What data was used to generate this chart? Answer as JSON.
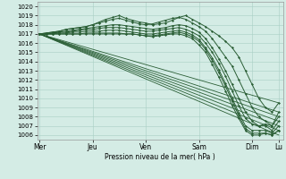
{
  "bg_color": "#d4ece5",
  "grid_color": "#a8cfc4",
  "line_color": "#2a5e35",
  "xlabel_text": "Pression niveau de la mer( hPa )",
  "ylim": [
    1005.5,
    1020.5
  ],
  "yticks": [
    1006,
    1007,
    1008,
    1009,
    1010,
    1011,
    1012,
    1013,
    1014,
    1015,
    1016,
    1017,
    1018,
    1019,
    1020
  ],
  "xtick_labels": [
    "Mer",
    "Jeu",
    "Ven",
    "Sam",
    "Dim",
    "Lu"
  ],
  "xtick_positions": [
    0,
    48,
    96,
    144,
    192,
    216
  ],
  "xlim": [
    -2,
    220
  ],
  "straight_lines": [
    [
      0,
      1017.0,
      216,
      1009.5
    ],
    [
      0,
      1017.0,
      216,
      1008.5
    ],
    [
      0,
      1017.0,
      216,
      1008.0
    ],
    [
      0,
      1017.0,
      216,
      1007.5
    ],
    [
      0,
      1017.0,
      216,
      1007.0
    ],
    [
      0,
      1017.0,
      216,
      1006.5
    ],
    [
      0,
      1017.0,
      216,
      1006.0
    ]
  ],
  "series": [
    {
      "x": [
        0,
        6,
        12,
        18,
        24,
        30,
        36,
        42,
        48,
        54,
        60,
        66,
        72,
        78,
        84,
        90,
        96,
        102,
        108,
        114,
        120,
        126,
        132,
        138,
        144,
        150,
        156,
        162,
        168,
        174,
        180,
        186,
        192,
        198,
        204,
        210,
        216
      ],
      "y": [
        1017.0,
        1017.1,
        1017.2,
        1017.3,
        1017.5,
        1017.6,
        1017.7,
        1017.8,
        1018.0,
        1018.3,
        1018.6,
        1018.8,
        1019.0,
        1018.7,
        1018.5,
        1018.3,
        1018.2,
        1018.0,
        1018.1,
        1018.2,
        1018.5,
        1018.8,
        1019.0,
        1018.6,
        1018.2,
        1017.8,
        1017.3,
        1016.8,
        1016.2,
        1015.5,
        1014.5,
        1013.0,
        1011.5,
        1010.0,
        1009.0,
        1008.5,
        1009.5
      ]
    },
    {
      "x": [
        0,
        6,
        12,
        18,
        24,
        30,
        36,
        42,
        48,
        54,
        60,
        66,
        72,
        78,
        84,
        90,
        96,
        102,
        108,
        114,
        120,
        126,
        132,
        138,
        144,
        150,
        156,
        162,
        168,
        174,
        180,
        186,
        192,
        198,
        204,
        210,
        216
      ],
      "y": [
        1017.0,
        1017.1,
        1017.2,
        1017.3,
        1017.5,
        1017.6,
        1017.7,
        1017.8,
        1018.0,
        1018.2,
        1018.4,
        1018.6,
        1018.7,
        1018.5,
        1018.3,
        1018.1,
        1018.0,
        1018.1,
        1018.3,
        1018.5,
        1018.7,
        1018.8,
        1018.6,
        1018.2,
        1017.8,
        1017.3,
        1016.5,
        1015.5,
        1014.5,
        1013.5,
        1012.0,
        1010.5,
        1009.0,
        1008.0,
        1007.5,
        1007.0,
        1008.5
      ]
    },
    {
      "x": [
        0,
        6,
        12,
        18,
        24,
        30,
        36,
        42,
        48,
        54,
        60,
        66,
        72,
        78,
        84,
        90,
        96,
        102,
        108,
        114,
        120,
        126,
        132,
        138,
        144,
        150,
        156,
        162,
        168,
        174,
        180,
        186,
        192,
        198,
        204,
        210,
        216
      ],
      "y": [
        1017.0,
        1017.0,
        1017.1,
        1017.2,
        1017.3,
        1017.4,
        1017.5,
        1017.6,
        1017.7,
        1017.8,
        1017.9,
        1018.0,
        1018.0,
        1017.9,
        1017.8,
        1017.7,
        1017.6,
        1017.5,
        1017.6,
        1017.7,
        1017.9,
        1018.0,
        1017.9,
        1017.6,
        1017.2,
        1016.5,
        1015.5,
        1014.3,
        1013.0,
        1011.5,
        1010.0,
        1008.5,
        1007.5,
        1007.0,
        1007.2,
        1007.0,
        1008.0
      ]
    },
    {
      "x": [
        0,
        6,
        12,
        18,
        24,
        30,
        36,
        42,
        48,
        54,
        60,
        66,
        72,
        78,
        84,
        90,
        96,
        102,
        108,
        114,
        120,
        126,
        132,
        138,
        144,
        150,
        156,
        162,
        168,
        174,
        180,
        186,
        192,
        198,
        204,
        210,
        216
      ],
      "y": [
        1017.0,
        1017.0,
        1017.1,
        1017.2,
        1017.2,
        1017.3,
        1017.4,
        1017.5,
        1017.5,
        1017.6,
        1017.7,
        1017.7,
        1017.7,
        1017.6,
        1017.5,
        1017.4,
        1017.3,
        1017.3,
        1017.4,
        1017.5,
        1017.6,
        1017.7,
        1017.5,
        1017.2,
        1016.8,
        1016.0,
        1015.0,
        1013.8,
        1012.4,
        1010.8,
        1009.2,
        1007.8,
        1007.2,
        1007.0,
        1007.0,
        1006.5,
        1007.5
      ]
    },
    {
      "x": [
        0,
        6,
        12,
        18,
        24,
        30,
        36,
        42,
        48,
        54,
        60,
        66,
        72,
        78,
        84,
        90,
        96,
        102,
        108,
        114,
        120,
        126,
        132,
        138,
        144,
        150,
        156,
        162,
        168,
        174,
        180,
        186,
        192,
        198,
        204,
        210,
        216
      ],
      "y": [
        1017.0,
        1017.0,
        1017.0,
        1017.1,
        1017.1,
        1017.2,
        1017.2,
        1017.3,
        1017.3,
        1017.3,
        1017.4,
        1017.4,
        1017.4,
        1017.3,
        1017.2,
        1017.1,
        1017.0,
        1017.0,
        1017.1,
        1017.2,
        1017.3,
        1017.4,
        1017.2,
        1016.9,
        1016.4,
        1015.5,
        1014.4,
        1013.1,
        1011.6,
        1010.0,
        1008.4,
        1007.0,
        1006.5,
        1006.5,
        1006.5,
        1006.2,
        1007.0
      ]
    },
    {
      "x": [
        0,
        6,
        12,
        18,
        24,
        30,
        36,
        42,
        48,
        54,
        60,
        66,
        72,
        78,
        84,
        90,
        96,
        102,
        108,
        114,
        120,
        126,
        132,
        138,
        144,
        150,
        156,
        162,
        168,
        174,
        180,
        186,
        192,
        198,
        204,
        210,
        216
      ],
      "y": [
        1017.0,
        1017.0,
        1017.0,
        1017.0,
        1017.0,
        1017.0,
        1017.0,
        1017.1,
        1017.1,
        1017.1,
        1017.1,
        1017.1,
        1017.1,
        1017.0,
        1017.0,
        1016.9,
        1016.8,
        1016.8,
        1016.9,
        1017.0,
        1017.1,
        1017.2,
        1017.0,
        1016.7,
        1016.2,
        1015.3,
        1014.1,
        1012.8,
        1011.3,
        1009.7,
        1008.1,
        1006.7,
        1006.2,
        1006.2,
        1006.2,
        1006.0,
        1006.5
      ]
    },
    {
      "x": [
        0,
        6,
        12,
        18,
        24,
        30,
        36,
        42,
        48,
        54,
        60,
        66,
        72,
        78,
        84,
        90,
        96,
        102,
        108,
        114,
        120,
        126,
        132,
        138,
        144,
        150,
        156,
        162,
        168,
        174,
        180,
        186,
        192,
        198,
        204,
        210,
        216
      ],
      "y": [
        1017.0,
        1017.0,
        1017.0,
        1017.0,
        1017.0,
        1017.0,
        1017.0,
        1017.0,
        1017.0,
        1017.0,
        1017.0,
        1017.0,
        1017.0,
        1017.0,
        1017.0,
        1016.9,
        1016.8,
        1016.7,
        1016.8,
        1016.9,
        1017.0,
        1017.0,
        1016.8,
        1016.5,
        1015.8,
        1015.0,
        1013.7,
        1012.3,
        1010.8,
        1009.2,
        1007.8,
        1006.5,
        1006.0,
        1006.0,
        1006.2,
        1006.0,
        1006.5
      ]
    }
  ]
}
